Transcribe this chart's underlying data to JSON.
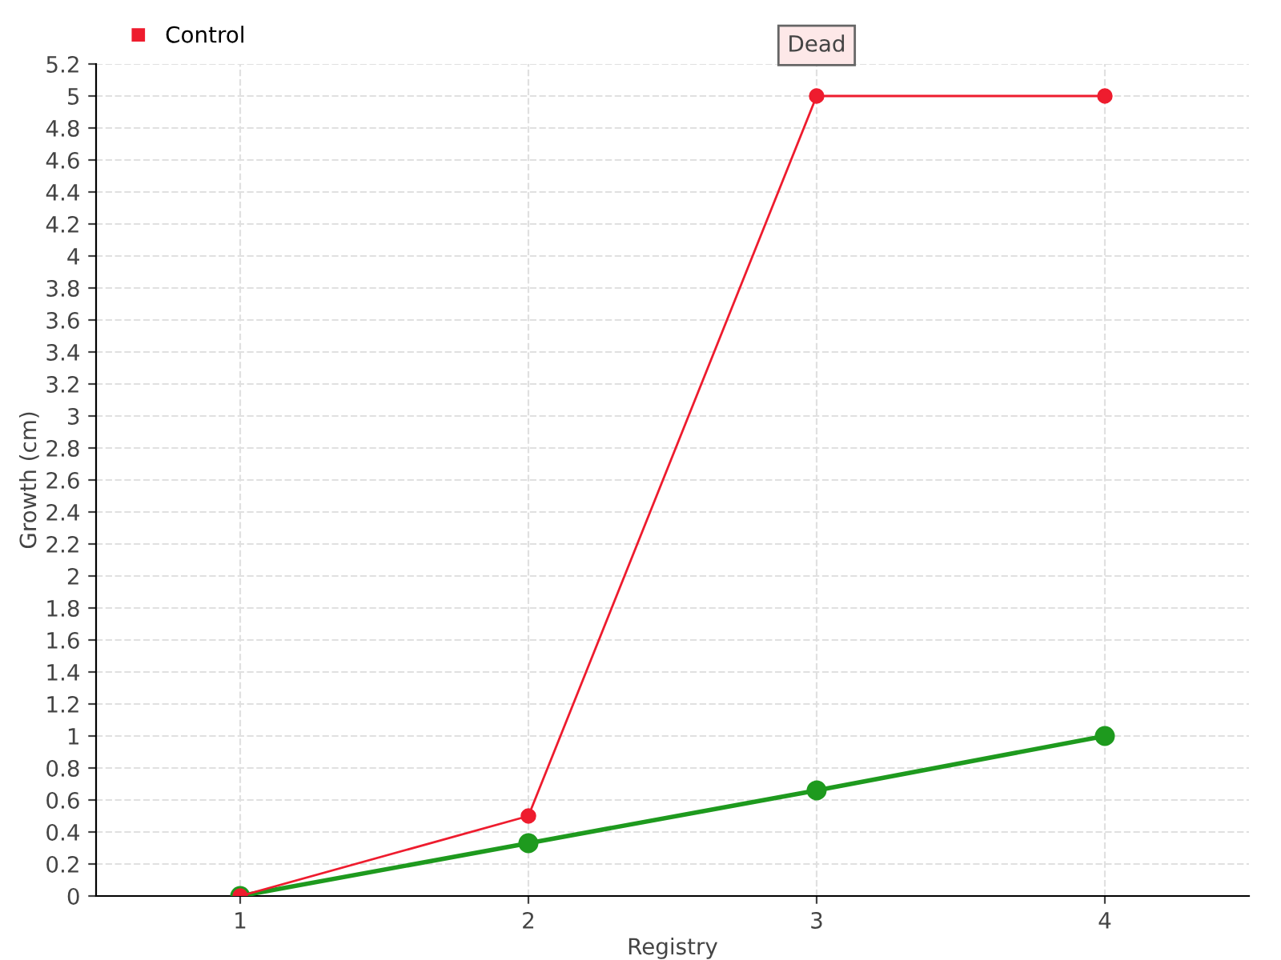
{
  "chart_data": {
    "type": "line",
    "xlabel": "Registry",
    "ylabel": "Growth (cm)",
    "categories": [
      "1",
      "2",
      "3",
      "4"
    ],
    "series": [
      {
        "color": "#1e9a1e",
        "values": [
          0,
          0.33,
          0.66,
          1
        ]
      },
      {
        "name": "Control",
        "color": "#ee1c2e",
        "values": [
          0,
          0.5,
          5,
          5
        ]
      }
    ],
    "ylim": [
      0,
      5.2
    ],
    "yticks": [
      0,
      0.2,
      0.4,
      0.6,
      0.8,
      1,
      1.2,
      1.4,
      1.6,
      1.8,
      2,
      2.2,
      2.4,
      2.6,
      2.8,
      3,
      3.2,
      3.4,
      3.6,
      3.8,
      4,
      4.2,
      4.4,
      4.6,
      4.8,
      5,
      5.2
    ],
    "annotations": [
      {
        "text": "Dead",
        "x": "3",
        "y": 5
      }
    ],
    "grid": true,
    "legend": "top left",
    "marker": "circle",
    "line_style": "solid"
  }
}
